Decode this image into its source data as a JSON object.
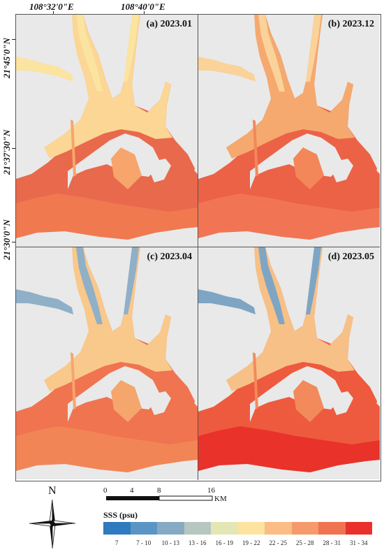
{
  "axes": {
    "lon_labels": [
      "108°32'0\"E",
      "108°40'0\"E"
    ],
    "lat_labels": [
      "21°45'0\"N",
      "21°37'30\"N",
      "21°30'0\"N"
    ]
  },
  "panels": [
    {
      "label": "(a) 2023.01",
      "sea": "#e9694c",
      "sea2": "#f0794f",
      "land_water": "#f7a56c",
      "upper": "#fbd694",
      "fresh": "#fbe3a0"
    },
    {
      "label": "(b) 2023.12",
      "sea": "#ec6246",
      "sea2": "#f17555",
      "land_water": "#f3875a",
      "upper": "#f5a96f",
      "fresh": "#f9d39a"
    },
    {
      "label": "(c) 2023.04",
      "sea": "#f07450",
      "sea2": "#f28556",
      "land_water": "#f5a66d",
      "upper": "#f9c88b",
      "fresh": "#8fb0c7"
    },
    {
      "label": "(d) 2023.05",
      "sea": "#ee5a3e",
      "sea2": "#e9322a",
      "land_water": "#f28a5b",
      "upper": "#f7c087",
      "fresh": "#7ea5c4"
    }
  ],
  "north_arrow": {
    "letter": "N"
  },
  "scale_bar": {
    "ticks": [
      "0",
      "4",
      "8",
      "16"
    ],
    "unit": "KM"
  },
  "legend": {
    "title": "SSS (psu)",
    "items": [
      {
        "label": "7",
        "color": "#2f7bbf"
      },
      {
        "label": "7 - 10",
        "color": "#5b95c5"
      },
      {
        "label": "10 - 13",
        "color": "#86aac4"
      },
      {
        "label": "13 - 16",
        "color": "#b5c7bf"
      },
      {
        "label": "16 - 19",
        "color": "#e2e7b5"
      },
      {
        "label": "19 - 22",
        "color": "#fde3a0"
      },
      {
        "label": "22 - 25",
        "color": "#fbbc86"
      },
      {
        "label": "25 - 28",
        "color": "#f69a6c"
      },
      {
        "label": "28 - 31",
        "color": "#f07452"
      },
      {
        "label": "31 - 34",
        "color": "#e9302a"
      }
    ]
  }
}
